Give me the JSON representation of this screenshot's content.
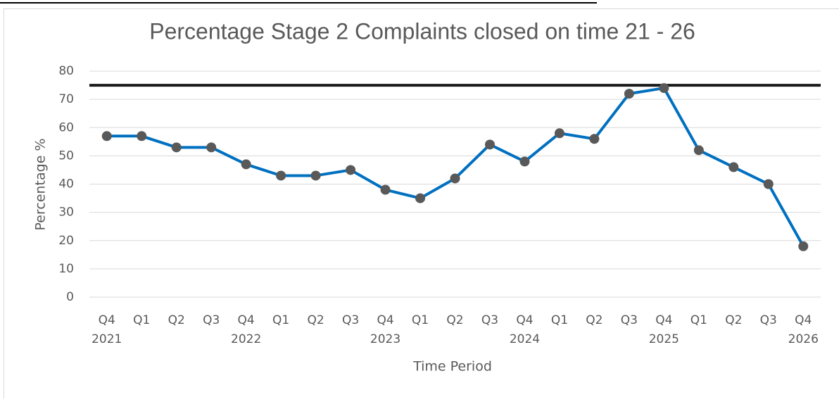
{
  "chart_data": {
    "type": "line",
    "title": "Percentage Stage 2 Complaints closed on time 21 - 26",
    "y_label": "Percentage %",
    "x_label": "Time Period",
    "categories": [
      "Q4",
      "Q1",
      "Q2",
      "Q3",
      "Q4",
      "Q1",
      "Q2",
      "Q3",
      "Q4",
      "Q1",
      "Q2",
      "Q3",
      "Q4",
      "Q1",
      "Q2",
      "Q3",
      "Q4",
      "Q1",
      "Q2",
      "Q3",
      "Q4"
    ],
    "category_groups": [
      "2021",
      null,
      null,
      null,
      "2022",
      null,
      null,
      null,
      "2023",
      null,
      null,
      null,
      "2024",
      null,
      null,
      null,
      "2025",
      null,
      null,
      null,
      "2026"
    ],
    "series": [
      {
        "color": "#0070c0",
        "marker_color": "#595959",
        "values": [
          57,
          57,
          53,
          53,
          47,
          43,
          43,
          45,
          38,
          35,
          42,
          54,
          48,
          58,
          56,
          72,
          74,
          52,
          46,
          40,
          18
        ]
      }
    ],
    "target": 75,
    "target_color": "#1a1a1a",
    "ylim": [
      0,
      80
    ],
    "yticks": [
      0,
      10,
      20,
      30,
      40,
      50,
      60,
      70,
      80
    ],
    "grid": true
  }
}
